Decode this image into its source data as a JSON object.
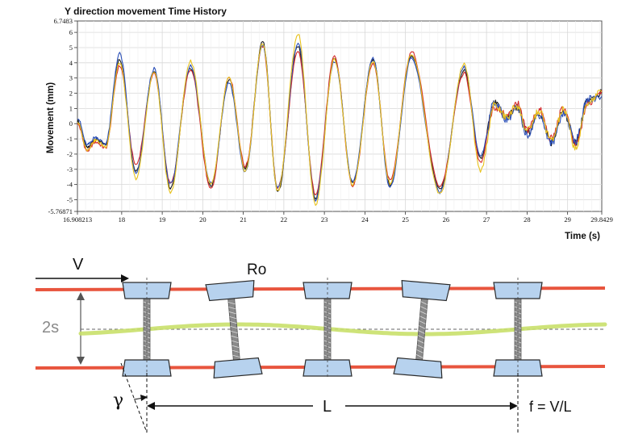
{
  "chart_data": {
    "type": "line",
    "title": "Y direction movement Time History",
    "xlabel": "Time (s)",
    "ylabel": "Movement (mm)",
    "xlim": [
      16.908213,
      29.8429
    ],
    "ylim": [
      -5.76871,
      6.7483
    ],
    "x_tick_labels": [
      "16.908213",
      "18",
      "19",
      "20",
      "21",
      "22",
      "23",
      "24",
      "25",
      "26",
      "27",
      "28",
      "29",
      "29.8429"
    ],
    "y_tick_labels": [
      "6.7483",
      "6",
      "5",
      "4",
      "3",
      "2",
      "1",
      "0",
      "-1",
      "-2",
      "-3",
      "-4",
      "-5",
      "-5.76871"
    ],
    "grid": true,
    "legend": "none",
    "series": [
      {
        "color": "#1c1c1c",
        "peaks": [
          [
            16.908,
            0.2
          ],
          [
            17.15,
            -1.6
          ],
          [
            17.35,
            -1.0
          ],
          [
            17.6,
            -1.4
          ],
          [
            17.95,
            4.2
          ],
          [
            18.35,
            -3.1
          ],
          [
            18.8,
            3.5
          ],
          [
            19.2,
            -4.2
          ],
          [
            19.7,
            3.7
          ],
          [
            20.2,
            -4.1
          ],
          [
            20.65,
            2.9
          ],
          [
            21.05,
            -3.0
          ],
          [
            21.48,
            5.4
          ],
          [
            21.85,
            -4.5
          ],
          [
            22.35,
            5.1
          ],
          [
            22.78,
            -4.9
          ],
          [
            23.25,
            4.3
          ],
          [
            23.7,
            -3.9
          ],
          [
            24.2,
            4.2
          ],
          [
            24.62,
            -4.0
          ],
          [
            25.15,
            4.5
          ],
          [
            25.85,
            -4.3
          ],
          [
            26.45,
            3.5
          ],
          [
            26.85,
            -2.3
          ],
          [
            27.2,
            1.3
          ],
          [
            27.5,
            0.4
          ],
          [
            27.75,
            1.1
          ],
          [
            28.0,
            -0.6
          ],
          [
            28.3,
            0.7
          ],
          [
            28.6,
            -1.2
          ],
          [
            28.9,
            0.8
          ],
          [
            29.2,
            -1.2
          ],
          [
            29.5,
            1.5
          ],
          [
            29.843,
            2.0
          ]
        ]
      },
      {
        "color": "#d62a2a",
        "peaks": [
          [
            16.908,
            0.0
          ],
          [
            17.15,
            -1.8
          ],
          [
            17.35,
            -1.2
          ],
          [
            17.6,
            -1.6
          ],
          [
            17.95,
            3.8
          ],
          [
            18.35,
            -2.7
          ],
          [
            18.8,
            3.3
          ],
          [
            19.2,
            -3.9
          ],
          [
            19.7,
            3.5
          ],
          [
            20.2,
            -4.3
          ],
          [
            20.65,
            3.1
          ],
          [
            21.05,
            -2.8
          ],
          [
            21.48,
            5.1
          ],
          [
            21.85,
            -4.2
          ],
          [
            22.35,
            4.7
          ],
          [
            22.78,
            -4.6
          ],
          [
            23.25,
            4.4
          ],
          [
            23.7,
            -4.1
          ],
          [
            24.2,
            4.0
          ],
          [
            24.62,
            -3.7
          ],
          [
            25.15,
            4.7
          ],
          [
            25.85,
            -4.1
          ],
          [
            26.45,
            3.3
          ],
          [
            26.85,
            -2.5
          ],
          [
            27.2,
            1.1
          ],
          [
            27.5,
            0.5
          ],
          [
            27.75,
            1.3
          ],
          [
            28.0,
            -0.4
          ],
          [
            28.3,
            0.9
          ],
          [
            28.6,
            -1.0
          ],
          [
            28.9,
            1.0
          ],
          [
            29.2,
            -1.4
          ],
          [
            29.5,
            1.3
          ],
          [
            29.843,
            2.2
          ]
        ]
      },
      {
        "color": "#2a4fb8",
        "peaks": [
          [
            16.908,
            0.4
          ],
          [
            17.15,
            -1.4
          ],
          [
            17.35,
            -0.9
          ],
          [
            17.6,
            -1.3
          ],
          [
            17.95,
            4.6
          ],
          [
            18.35,
            -3.3
          ],
          [
            18.8,
            3.6
          ],
          [
            19.2,
            -4.0
          ],
          [
            19.7,
            3.8
          ],
          [
            20.2,
            -3.9
          ],
          [
            20.65,
            2.7
          ],
          [
            21.05,
            -3.2
          ],
          [
            21.48,
            5.2
          ],
          [
            21.85,
            -4.3
          ],
          [
            22.35,
            5.3
          ],
          [
            22.78,
            -5.0
          ],
          [
            23.25,
            4.1
          ],
          [
            23.7,
            -3.8
          ],
          [
            24.2,
            4.3
          ],
          [
            24.62,
            -4.2
          ],
          [
            25.15,
            4.3
          ],
          [
            25.85,
            -4.5
          ],
          [
            26.45,
            3.7
          ],
          [
            26.85,
            -2.1
          ],
          [
            27.2,
            1.4
          ],
          [
            27.5,
            0.3
          ],
          [
            27.75,
            1.0
          ],
          [
            28.0,
            -0.7
          ],
          [
            28.3,
            0.6
          ],
          [
            28.6,
            -1.3
          ],
          [
            28.9,
            0.7
          ],
          [
            29.2,
            -1.1
          ],
          [
            29.5,
            1.6
          ],
          [
            29.843,
            1.8
          ]
        ]
      },
      {
        "color": "#e8c21c",
        "peaks": [
          [
            16.908,
            0.1
          ],
          [
            17.15,
            -1.7
          ],
          [
            17.35,
            -1.1
          ],
          [
            17.6,
            -1.5
          ],
          [
            17.95,
            4.0
          ],
          [
            18.35,
            -3.6
          ],
          [
            18.8,
            3.4
          ],
          [
            19.2,
            -4.5
          ],
          [
            19.7,
            4.1
          ],
          [
            20.2,
            -4.0
          ],
          [
            20.65,
            3.0
          ],
          [
            21.05,
            -3.1
          ],
          [
            21.48,
            5.3
          ],
          [
            21.85,
            -4.4
          ],
          [
            22.35,
            5.9
          ],
          [
            22.78,
            -5.3
          ],
          [
            23.25,
            4.2
          ],
          [
            23.7,
            -4.0
          ],
          [
            24.2,
            4.1
          ],
          [
            24.62,
            -3.9
          ],
          [
            25.15,
            4.6
          ],
          [
            25.85,
            -4.6
          ],
          [
            26.45,
            3.9
          ],
          [
            26.85,
            -3.1
          ],
          [
            27.2,
            1.2
          ],
          [
            27.5,
            0.4
          ],
          [
            27.75,
            1.2
          ],
          [
            28.0,
            -0.5
          ],
          [
            28.3,
            0.8
          ],
          [
            28.6,
            -1.1
          ],
          [
            28.9,
            0.9
          ],
          [
            29.2,
            -1.6
          ],
          [
            29.5,
            1.4
          ],
          [
            29.843,
            2.1
          ]
        ]
      }
    ]
  },
  "diagram": {
    "velocity_label": "V",
    "radius_label": "Ro",
    "gap_label": "2s",
    "angle_label": "γ",
    "length_label": "L",
    "frequency_label": "f = V/L"
  },
  "colors": {
    "rail": "#e8553e",
    "wheel_fill": "#b7d2ee",
    "wheel_stroke": "#2a2a2a",
    "path": "#c9e06a",
    "axle": "#8a8a8a"
  }
}
